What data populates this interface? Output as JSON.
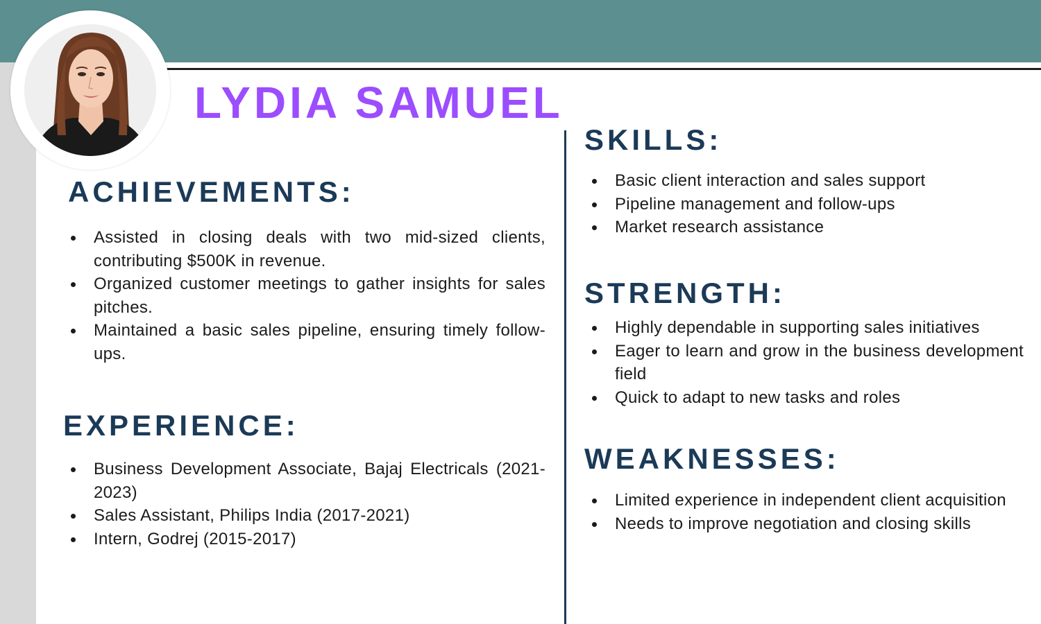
{
  "name": "LYDIA SAMUEL",
  "photo_alt": "profile-photo",
  "achievements": {
    "heading": "ACHIEVEMENTS:",
    "items": [
      "Assisted in closing deals with two mid-sized clients, contributing $500K in revenue.",
      "Organized customer meetings to gather insights for sales pitches.",
      "Maintained a basic sales pipeline, ensuring timely follow-ups."
    ]
  },
  "experience": {
    "heading": "EXPERIENCE:",
    "items": [
      "Business Development Associate, Bajaj Electricals (2021-2023)",
      "Sales Assistant, Philips India (2017-2021)",
      "Intern, Godrej (2015-2017)"
    ]
  },
  "skills": {
    "heading": "SKILLS:",
    "items": [
      "Basic client interaction and sales support",
      "Pipeline management and follow-ups",
      "Market research assistance"
    ]
  },
  "strength": {
    "heading": "STRENGTH:",
    "items": [
      "Highly dependable in supporting sales initiatives",
      "Eager to learn and grow in the business development field",
      "Quick to adapt to new tasks and roles"
    ]
  },
  "weaknesses": {
    "heading": "WEAKNESSES:",
    "items": [
      "Limited experience in independent client acquisition",
      "Needs to improve negotiation and closing skills"
    ]
  },
  "colors": {
    "top_band": "#5c8f8f",
    "name": "#9b4dff",
    "heading": "#1b3a57",
    "side_strip": "#d9d9d9"
  }
}
